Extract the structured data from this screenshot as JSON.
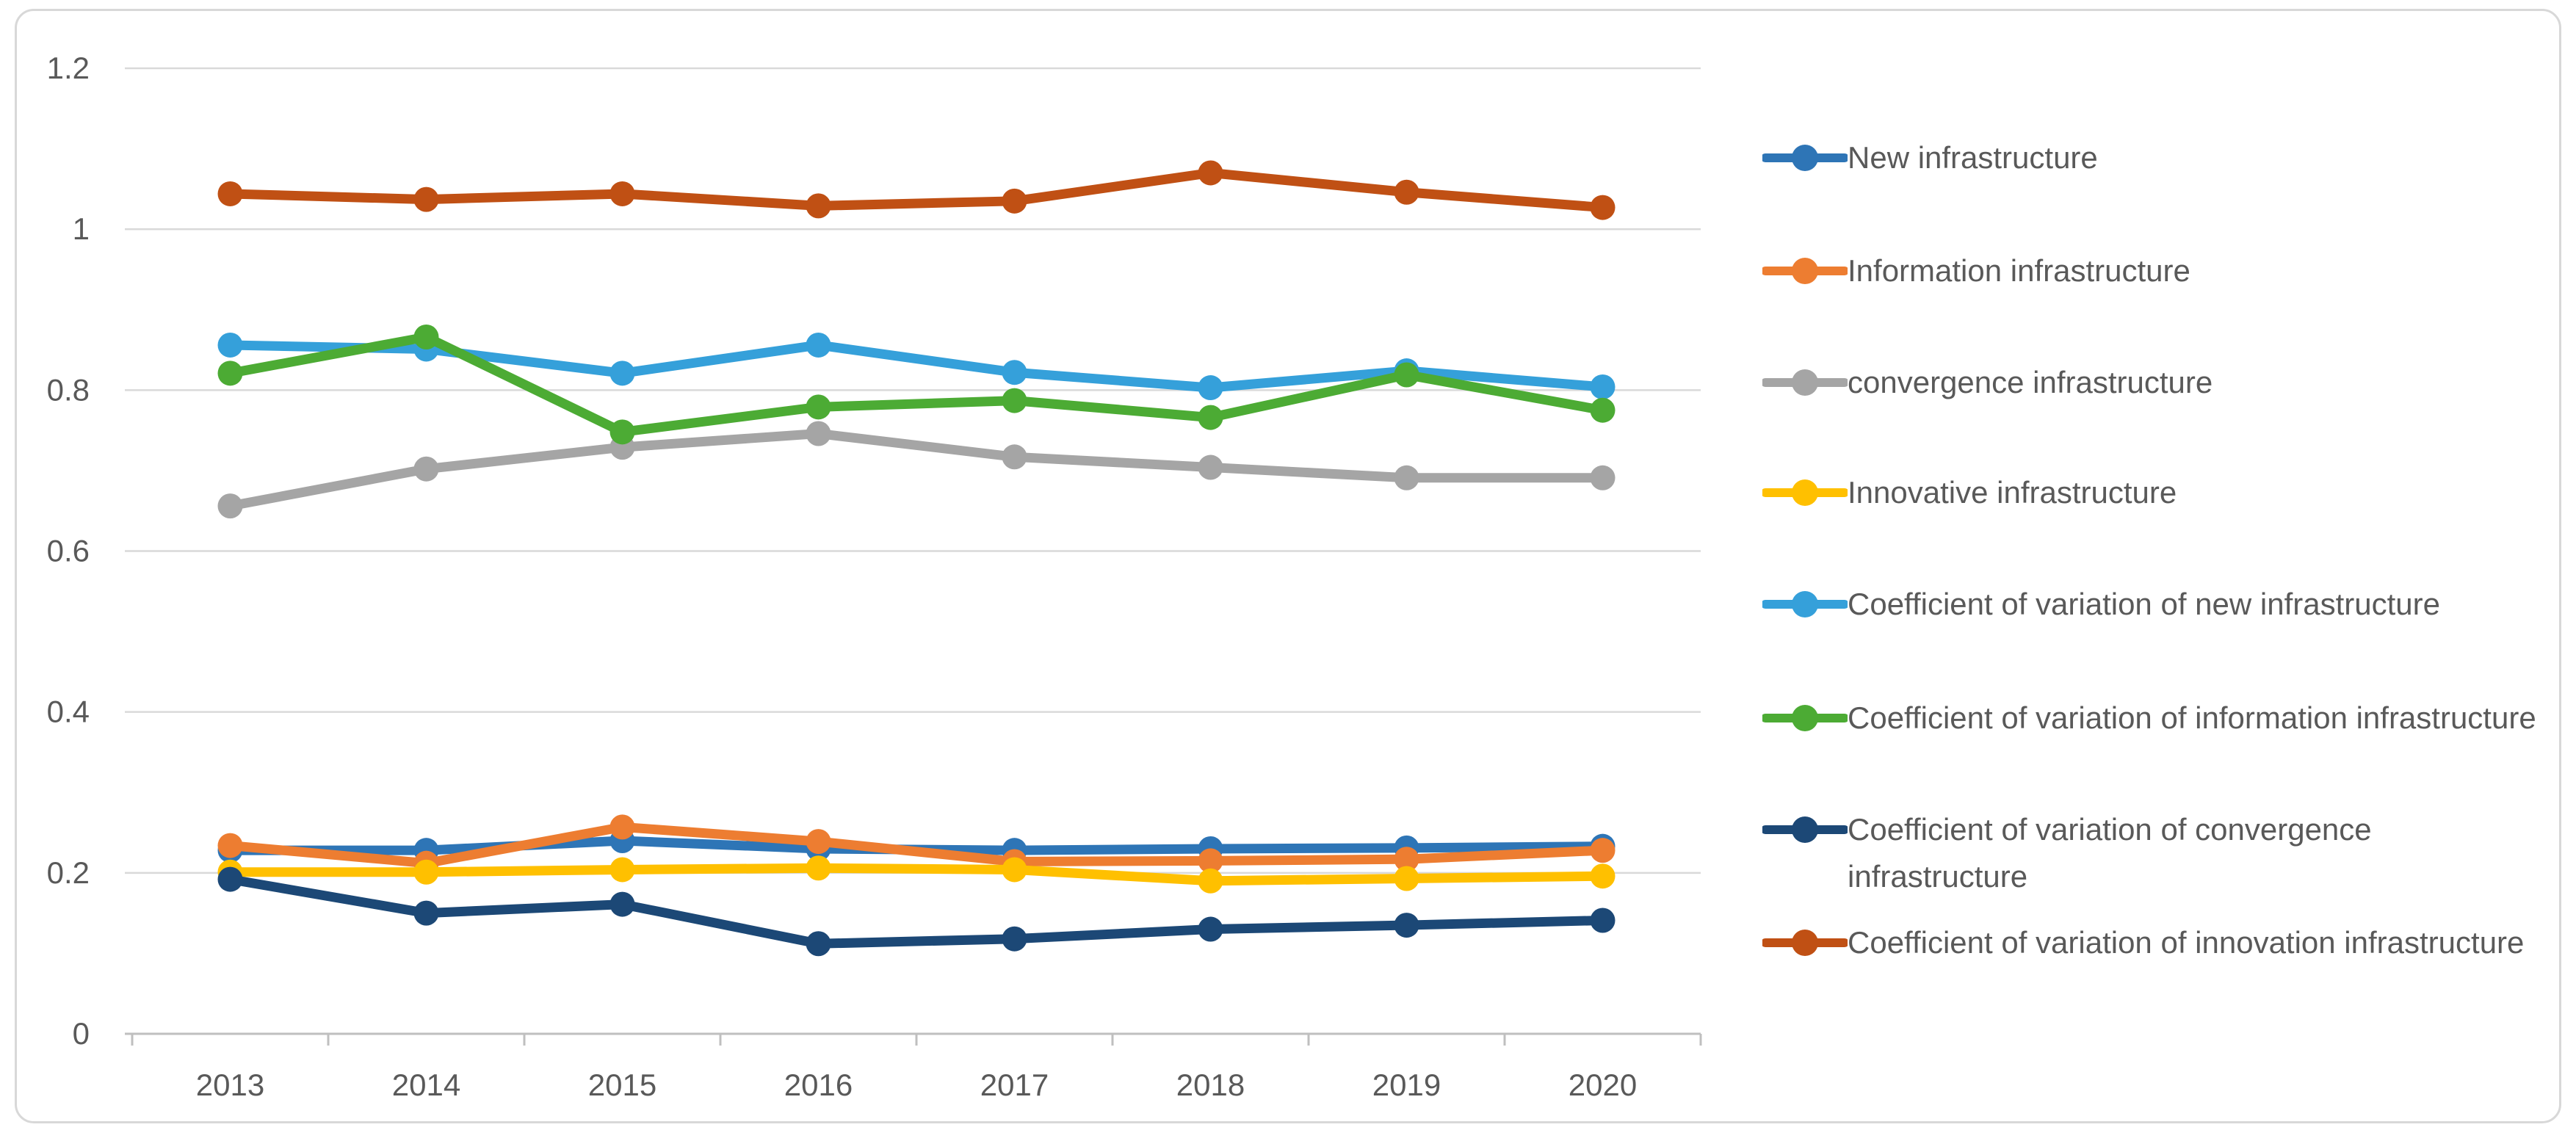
{
  "figure": {
    "background": "#FFFFFF",
    "border_color": "#D8D8D8"
  },
  "chart_data": {
    "type": "line",
    "title": "",
    "xlabel": "",
    "ylabel": "",
    "x": [
      "2013",
      "2014",
      "2015",
      "2016",
      "2017",
      "2018",
      "2019",
      "2020"
    ],
    "ylim": [
      0,
      1.2
    ],
    "yticks": [
      {
        "value": 1.2,
        "label": "1.2"
      },
      {
        "value": 1.0,
        "label": "1"
      },
      {
        "value": 0.8,
        "label": "0.8"
      },
      {
        "value": 0.6,
        "label": "0.6"
      },
      {
        "value": 0.4,
        "label": "0.4"
      },
      {
        "value": 0.2,
        "label": "0.2"
      },
      {
        "value": 0.0,
        "label": "0"
      }
    ],
    "grid": "horizontal",
    "legend_position": "right",
    "marker": "circle",
    "colors": {
      "axis_label": "#595959",
      "legend_text": "#595959",
      "gridline": "#D9D9D9",
      "axis_line": "#BFBFBF"
    },
    "series": [
      {
        "name": "New infrastructure",
        "color": "#2E75B6",
        "values": [
          0.228,
          0.228,
          0.24,
          0.23,
          0.228,
          0.23,
          0.231,
          0.233
        ]
      },
      {
        "name": "Information infrastructure",
        "color": "#ED7D31",
        "values": [
          0.234,
          0.212,
          0.257,
          0.239,
          0.214,
          0.215,
          0.217,
          0.228
        ]
      },
      {
        "name": "convergence infrastructure",
        "color": "#A5A5A5",
        "values": [
          0.656,
          0.702,
          0.729,
          0.746,
          0.717,
          0.704,
          0.691,
          0.691
        ]
      },
      {
        "name": "Innovative infrastructure",
        "color": "#FFC000",
        "values": [
          0.201,
          0.201,
          0.204,
          0.206,
          0.204,
          0.19,
          0.193,
          0.196
        ]
      },
      {
        "name": "Coefficient of variation of new infrastructure",
        "color": "#35A0DA",
        "values": [
          0.856,
          0.851,
          0.821,
          0.856,
          0.822,
          0.803,
          0.824,
          0.804
        ]
      },
      {
        "name": "Coefficient of variation of information infrastructure",
        "color": "#4CAB34",
        "values": [
          0.821,
          0.866,
          0.748,
          0.779,
          0.787,
          0.766,
          0.819,
          0.775
        ]
      },
      {
        "name": "Coefficient of variation of convergence infrastructure",
        "color": "#1C4876",
        "values": [
          0.192,
          0.15,
          0.161,
          0.112,
          0.118,
          0.13,
          0.135,
          0.141
        ]
      },
      {
        "name": "Coefficient of variation of innovation infrastructure",
        "color": "#C05014",
        "values": [
          1.044,
          1.037,
          1.044,
          1.029,
          1.035,
          1.07,
          1.046,
          1.027
        ]
      }
    ]
  }
}
